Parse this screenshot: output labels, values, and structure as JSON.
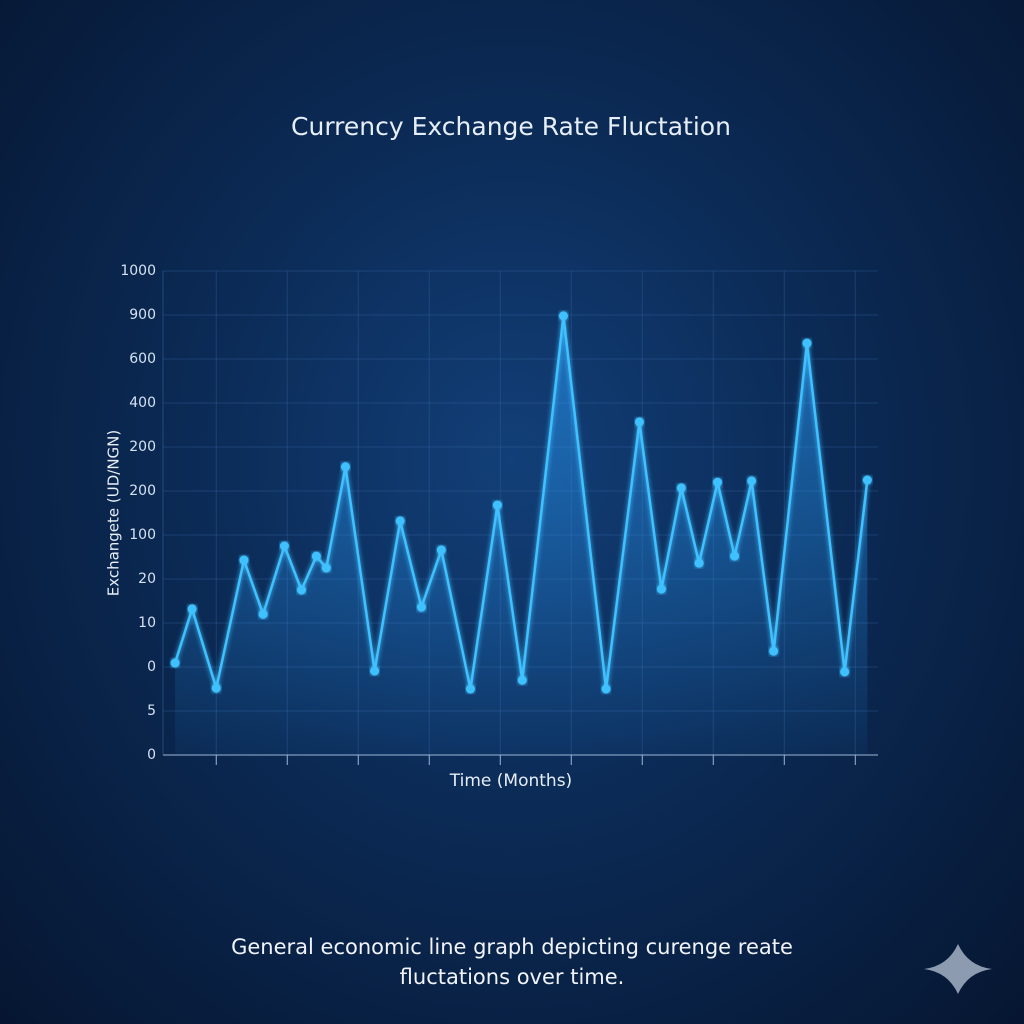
{
  "chart_data": {
    "type": "line",
    "title": "Currency Exchange Rate Fluctation",
    "y_label": "Exchangete (UD/NGN)",
    "x_label": "Time (Months)",
    "caption": "General economic line graph depicting curenge reate fluctations over time.",
    "x": [
      0.42,
      0.66,
      1.0,
      1.39,
      1.66,
      1.96,
      2.2,
      2.41,
      2.55,
      2.82,
      3.23,
      3.59,
      3.89,
      4.17,
      4.58,
      4.96,
      5.31,
      5.89,
      6.49,
      6.96,
      7.27,
      7.55,
      7.8,
      8.06,
      8.3,
      8.54,
      8.85,
      9.32,
      9.85,
      10.17
    ],
    "values": [
      2.09,
      3.32,
      1.52,
      4.43,
      3.2,
      4.75,
      3.75,
      4.52,
      4.25,
      6.55,
      1.91,
      5.32,
      3.36,
      4.66,
      1.5,
      5.68,
      1.7,
      9.98,
      1.5,
      7.57,
      3.77,
      6.07,
      4.36,
      6.2,
      4.52,
      6.23,
      2.36,
      9.36,
      1.89,
      6.25
    ],
    "color": "#3fc1ff",
    "xlim": [
      0.25,
      10.32
    ],
    "xticks": [
      1,
      2,
      3,
      4,
      5,
      6,
      7,
      8,
      9,
      10
    ],
    "ylim": [
      0,
      11
    ],
    "yticks": [
      0,
      {
        "value": 1,
        "label": "5"
      },
      {
        "value": 2,
        "label": "0"
      },
      {
        "value": 3,
        "label": "10"
      },
      {
        "value": 4,
        "label": "20"
      },
      {
        "value": 5,
        "label": "100"
      },
      {
        "value": 6,
        "label": "200"
      },
      {
        "value": 7,
        "label": "200"
      },
      {
        "value": 8,
        "label": "400"
      },
      {
        "value": 9,
        "label": "600"
      },
      {
        "value": 10,
        "label": "900"
      },
      {
        "value": 11,
        "label": "1000"
      }
    ],
    "grid": true
  }
}
